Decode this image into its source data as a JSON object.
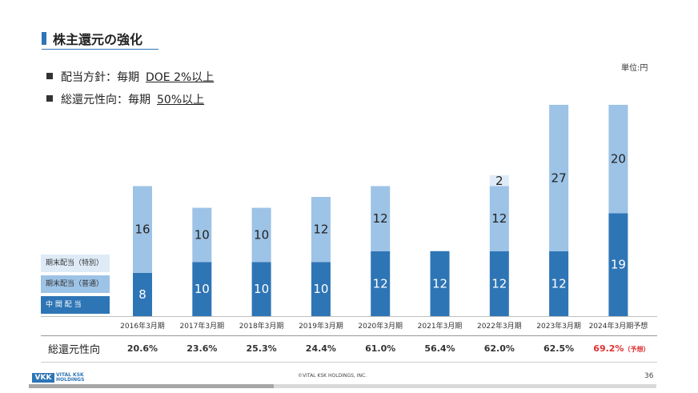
{
  "header": {
    "title": "株主還元の強化",
    "bullets": [
      {
        "label": "配当方針：毎期",
        "value": "DOE 2%以上"
      },
      {
        "label": "総還元性向：毎期",
        "value": "50%以上"
      }
    ],
    "unit": "単位:円"
  },
  "chart_data": {
    "type": "bar",
    "stacked": true,
    "categories": [
      "2016年3月期",
      "2017年3月期",
      "2018年3月期",
      "2019年3月期",
      "2020年3月期",
      "2021年3月期",
      "2022年3月期",
      "2023年3月期",
      "2024年3月期予想"
    ],
    "series": [
      {
        "name": "中 間 配 当",
        "values": [
          8,
          10,
          10,
          10,
          12,
          12,
          12,
          12,
          19
        ],
        "color": "#2e75b6"
      },
      {
        "name": "期末配当（普通）",
        "values": [
          16,
          10,
          10,
          12,
          12,
          0,
          12,
          27,
          20
        ],
        "color": "#9dc3e6"
      },
      {
        "name": "期末配当（特別）",
        "values": [
          0,
          0,
          0,
          0,
          0,
          0,
          2,
          0,
          0
        ],
        "color": "#deebf7"
      }
    ],
    "unit": "円",
    "ylim": [
      0,
      42
    ]
  },
  "legend": {
    "special": "期末配当（特別）",
    "normal": "期末配当（普通）",
    "interim": "中 間 配 当",
    "colors": {
      "special": "#deebf7",
      "normal": "#9dc3e6",
      "interim": "#2e75b6"
    }
  },
  "payout": {
    "label": "総還元性向",
    "values": [
      "20.6%",
      "23.6%",
      "25.3%",
      "24.4%",
      "61.0%",
      "56.4%",
      "62.0%",
      "62.5%",
      "69.2%"
    ],
    "forecast_note": "（予想）"
  },
  "footer": {
    "logo_mark": "VKK",
    "logo_line1": "VITAL KSK",
    "logo_line2": "HOLDINGS",
    "copyright": "©VITAL KSK HOLDINGS, INC.",
    "page": "36"
  }
}
